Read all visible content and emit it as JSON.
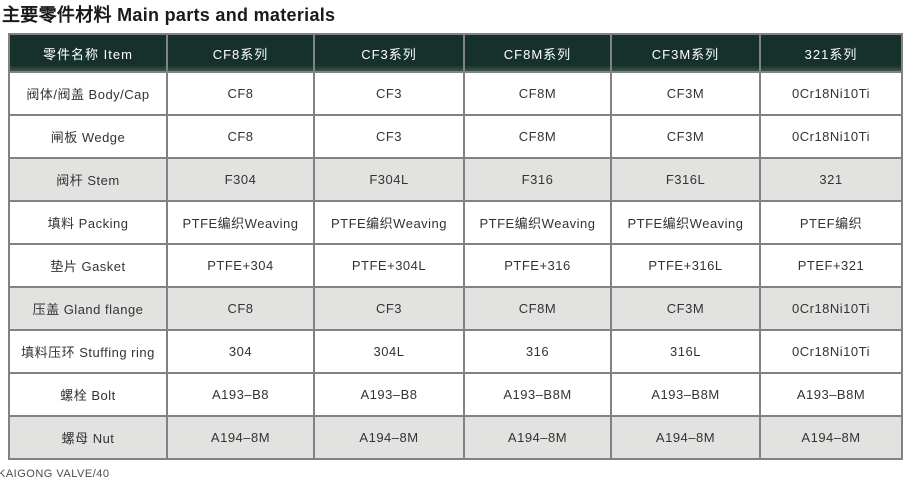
{
  "page": {
    "title": "主要零件材料 Main parts and materials",
    "footer": "KAIGONG VALVE/40"
  },
  "table": {
    "columns": [
      "零件名称 Item",
      "CF8系列",
      "CF3系列",
      "CF8M系列",
      "CF3M系列",
      "321系列"
    ],
    "rows": [
      {
        "item": "阀体/阀盖 Body/Cap",
        "values": [
          "CF8",
          "CF3",
          "CF8M",
          "CF3M",
          "0Cr18Ni10Ti"
        ],
        "shaded": false
      },
      {
        "item": "闸板 Wedge",
        "values": [
          "CF8",
          "CF3",
          "CF8M",
          "CF3M",
          "0Cr18Ni10Ti"
        ],
        "shaded": false
      },
      {
        "item": "阀杆 Stem",
        "values": [
          "F304",
          "F304L",
          "F316",
          "F316L",
          "321"
        ],
        "shaded": true
      },
      {
        "item": "填料 Packing",
        "values": [
          "PTFE编织Weaving",
          "PTFE编织Weaving",
          "PTFE编织Weaving",
          "PTFE编织Weaving",
          "PTEF编织"
        ],
        "shaded": false
      },
      {
        "item": "垫片 Gasket",
        "values": [
          "PTFE+304",
          "PTFE+304L",
          "PTFE+316",
          "PTFE+316L",
          "PTEF+321"
        ],
        "shaded": false
      },
      {
        "item": "压盖 Gland flange",
        "values": [
          "CF8",
          "CF3",
          "CF8M",
          "CF3M",
          "0Cr18Ni10Ti"
        ],
        "shaded": true
      },
      {
        "item": "填料压环 Stuffing ring",
        "values": [
          "304",
          "304L",
          "316",
          "316L",
          "0Cr18Ni10Ti"
        ],
        "shaded": false
      },
      {
        "item": "螺栓 Bolt",
        "values": [
          "A193–B8",
          "A193–B8",
          "A193–B8M",
          "A193–B8M",
          "A193–B8M"
        ],
        "shaded": false
      },
      {
        "item": "螺母 Nut",
        "values": [
          "A194–8M",
          "A194–8M",
          "A194–8M",
          "A194–8M",
          "A194–8M"
        ],
        "shaded": true
      }
    ],
    "colors": {
      "header_bg": "#16312b",
      "header_text": "#ffffff",
      "row_bg": "#ffffff",
      "row_shaded_bg": "#e2e2e0",
      "border": "#828282",
      "body_text": "#333333"
    }
  }
}
